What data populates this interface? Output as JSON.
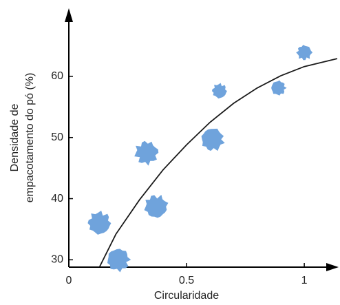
{
  "chart_data": {
    "type": "scatter",
    "xlabel": "Circularidade",
    "ylabel": [
      "Densidade de",
      "empacotamento do pó (%)"
    ],
    "x": [
      0.13,
      0.21,
      0.33,
      0.37,
      0.61,
      0.64,
      0.89,
      1.0
    ],
    "values": [
      36,
      30,
      47.5,
      38.7,
      49.7,
      57.6,
      58.1,
      63.9
    ],
    "color": "#6fa3dc",
    "curve": {
      "x": [
        0.13,
        0.2,
        0.3,
        0.4,
        0.5,
        0.6,
        0.7,
        0.8,
        0.9,
        1.0,
        1.14
      ],
      "values": [
        28.8,
        34.2,
        39.8,
        44.7,
        48.8,
        52.5,
        55.6,
        58.1,
        60.1,
        61.6,
        62.9
      ],
      "color": "#1a1a1a"
    },
    "xlim": [
      0,
      1.14
    ],
    "ylim": [
      28.8,
      70.8
    ],
    "xticks": [
      0,
      0.5,
      1
    ],
    "yticks": [
      30,
      40,
      50,
      60
    ]
  }
}
